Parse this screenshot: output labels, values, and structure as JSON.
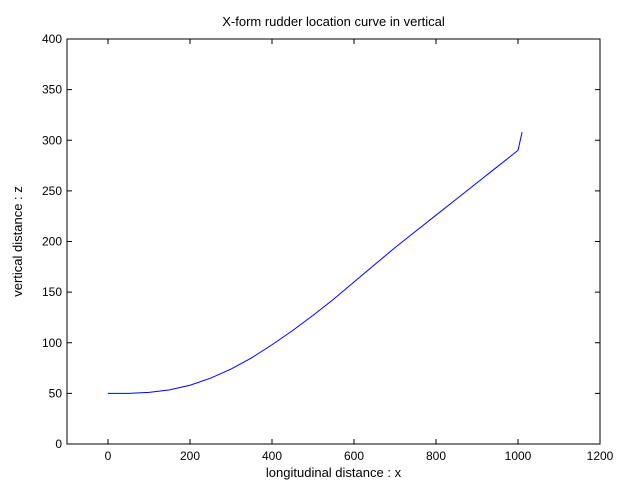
{
  "chart_data": {
    "type": "line",
    "title": "X-form rudder location curve in vertical",
    "xlabel": "longitudinal distance : x",
    "ylabel": "vertical distance : z",
    "xlim": [
      -100,
      1200
    ],
    "ylim": [
      0,
      400
    ],
    "xticks": [
      0,
      200,
      400,
      600,
      800,
      1000,
      1200
    ],
    "yticks": [
      0,
      50,
      100,
      150,
      200,
      250,
      300,
      350,
      400
    ],
    "grid": false,
    "series": [
      {
        "color": "#0000ff",
        "x": [
          0,
          50,
          100,
          150,
          200,
          250,
          300,
          350,
          400,
          450,
          500,
          550,
          600,
          650,
          700,
          750,
          800,
          850,
          900,
          950,
          1000,
          1010
        ],
        "y": [
          50,
          50,
          51,
          53.5,
          58,
          65,
          74,
          85,
          98,
          112,
          127,
          143,
          160,
          177,
          194,
          210,
          226,
          242,
          258,
          274,
          290,
          308
        ]
      }
    ]
  }
}
